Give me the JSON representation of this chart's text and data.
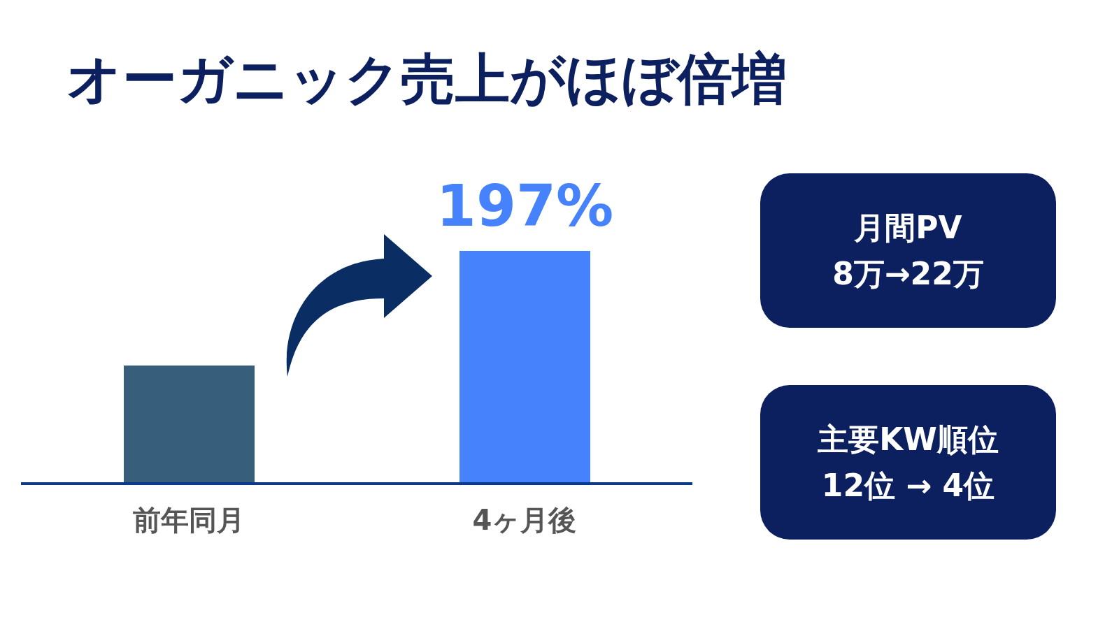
{
  "chart_data": {
    "type": "bar",
    "title": "オーガニック売上がほぼ倍増",
    "categories": [
      "前年同月",
      "4ヶ月後"
    ],
    "values": [
      100,
      197
    ],
    "colors": [
      "#375e7a",
      "#4682fc"
    ],
    "value_labels": [
      null,
      "197%"
    ],
    "annotations": [
      "月間PV",
      "8万→22万",
      "主要KW順位",
      "12位 → 4位"
    ]
  }
}
